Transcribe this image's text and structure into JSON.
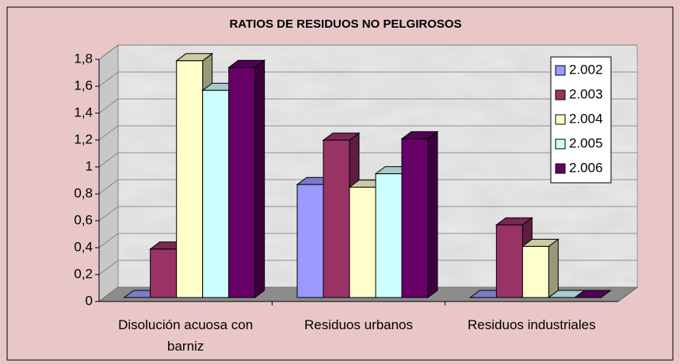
{
  "chart_data": {
    "type": "bar3d",
    "title": "RATIOS DE RESIDUOS NO PELGIROSOS",
    "categories": [
      "Disolución acuosa con barniz",
      "Residuos urbanos",
      "Residuos industriales"
    ],
    "series": [
      {
        "name": "2.002",
        "color": "#9999ff",
        "values": [
          0,
          0.84,
          0
        ]
      },
      {
        "name": "2.003",
        "color": "#993366",
        "values": [
          0.36,
          1.17,
          0.54
        ]
      },
      {
        "name": "2.004",
        "color": "#ffffcc",
        "values": [
          1.76,
          0.82,
          0.38
        ]
      },
      {
        "name": "2.005",
        "color": "#ccffff",
        "values": [
          1.54,
          0.92,
          0
        ]
      },
      {
        "name": "2.006",
        "color": "#660066",
        "values": [
          1.71,
          1.18,
          0
        ]
      }
    ],
    "ylim": [
      0,
      1.8
    ],
    "yticks": [
      0,
      {
        "value": 0.2,
        "label": "0,2"
      },
      {
        "value": 0.4,
        "label": "0,4"
      },
      {
        "value": 0.6,
        "label": "0,6"
      },
      {
        "value": 0.8,
        "label": "0,8"
      },
      1,
      {
        "value": 1.2,
        "label": "1,2"
      },
      {
        "value": 1.4,
        "label": "1,4"
      },
      {
        "value": 1.6,
        "label": "1,6"
      },
      {
        "value": 1.8,
        "label": "1,8"
      }
    ],
    "grid": true,
    "legend": "right"
  }
}
